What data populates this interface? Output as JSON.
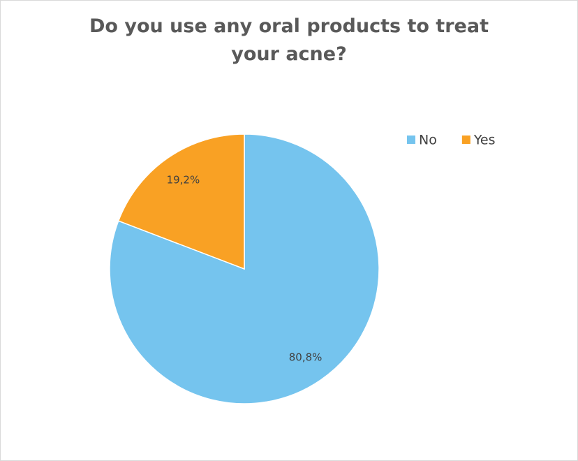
{
  "chart_data": {
    "type": "pie",
    "title": "Do you use any oral products to treat your acne?",
    "categories": [
      "No",
      "Yes"
    ],
    "values": [
      80.8,
      19.2
    ],
    "value_labels": [
      "80,8%",
      "19,2%"
    ],
    "colors": [
      "#75c4ee",
      "#f9a124"
    ],
    "legend": "top-right"
  }
}
